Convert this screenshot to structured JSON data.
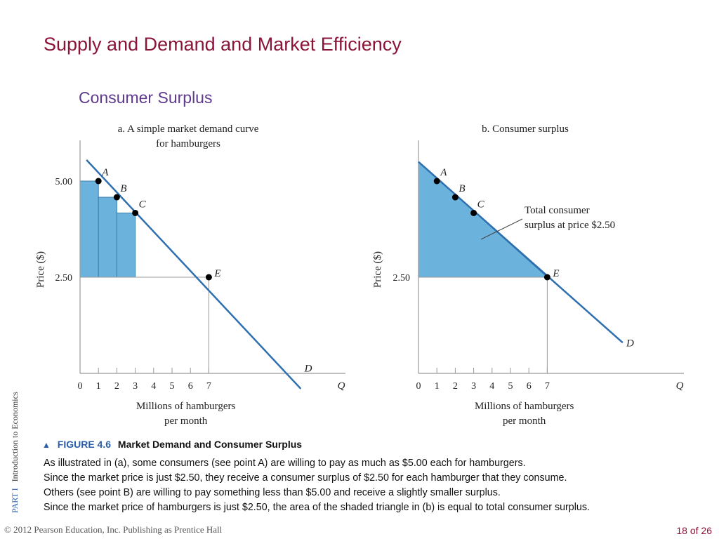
{
  "slide": {
    "title": "Supply and Demand and Market Efficiency",
    "subtitle": "Consumer Surplus",
    "sidebar_part": "PART  I",
    "sidebar_text": "Introduction  to  Economics",
    "footer": "© 2012 Pearson Education, Inc. Publishing as Prentice Hall",
    "page": "18 of 26"
  },
  "caption": {
    "figure_label": "FIGURE 4.6",
    "figure_title": "Market Demand and Consumer Surplus",
    "lines": [
      "As illustrated in (a), some consumers (see point A) are willing to pay as much as $5.00 each for hamburgers.",
      "Since the market price is just $2.50, they receive a consumer surplus of $2.50 for each hamburger that they consume.",
      "Others (see point B) are willing to pay something less than $5.00 and receive a slightly smaller surplus.",
      "Since the market price of hamburgers is just $2.50, the area of the shaded triangle in (b) is equal to total consumer surplus."
    ]
  },
  "colors": {
    "title": "#8b1538",
    "subtitle": "#5e3a8c",
    "demand_line": "#2e6fb0",
    "surplus_fill": "#6bb3dc",
    "axis": "#999999",
    "point": "#000000"
  },
  "chart_data": [
    {
      "type": "line",
      "panel": "a",
      "title": [
        "a. A simple market demand curve",
        "for hamburgers"
      ],
      "xlabel": [
        "Millions of hamburgers",
        "per month"
      ],
      "ylabel": "Price ($)",
      "x_axis_symbol": "Q",
      "x_ticks": [
        0,
        1,
        2,
        3,
        4,
        5,
        6,
        7
      ],
      "y_ticks": [
        {
          "value": 2.5,
          "label": "2.50"
        },
        {
          "value": 5.0,
          "label": "5.00"
        }
      ],
      "xlim": [
        0,
        14.3
      ],
      "ylim": [
        0,
        6.1
      ],
      "series": [
        {
          "x": [
            0.35,
            12.0
          ],
          "y": [
            5.55,
            -0.4
          ],
          "label_at": {
            "x": 12.2,
            "y": 0.05,
            "text": "D"
          }
        }
      ],
      "points": [
        {
          "name": "A",
          "x": 1,
          "y": 5.0
        },
        {
          "name": "B",
          "x": 2,
          "y": 4.58
        },
        {
          "name": "C",
          "x": 3,
          "y": 4.17
        },
        {
          "name": "E",
          "x": 7,
          "y": 2.5
        }
      ],
      "price_line": 2.5,
      "surplus_bars": [
        {
          "x0": 0,
          "x1": 1,
          "top": 5.0
        },
        {
          "x0": 1,
          "x1": 2,
          "top": 4.58
        },
        {
          "x0": 2,
          "x1": 3,
          "top": 4.17
        }
      ],
      "grid": false
    },
    {
      "type": "area",
      "panel": "b",
      "title": [
        "b. Consumer surplus"
      ],
      "xlabel": [
        "Millions of hamburgers",
        "per month"
      ],
      "ylabel": "Price ($)",
      "x_axis_symbol": "Q",
      "x_ticks": [
        0,
        1,
        2,
        3,
        4,
        5,
        6,
        7
      ],
      "y_ticks": [
        {
          "value": 2.5,
          "label": "2.50"
        }
      ],
      "xlim": [
        0,
        14.3
      ],
      "ylim": [
        0,
        6.1
      ],
      "series": [
        {
          "x": [
            0,
            11.1
          ],
          "y": [
            5.5,
            0.8
          ],
          "label_at": {
            "x": 11.3,
            "y": 0.7,
            "text": "D"
          }
        }
      ],
      "points": [
        {
          "name": "A",
          "x": 1,
          "y": 5.0
        },
        {
          "name": "B",
          "x": 2,
          "y": 4.58
        },
        {
          "name": "C",
          "x": 3,
          "y": 4.17
        },
        {
          "name": "E",
          "x": 7,
          "y": 2.5
        }
      ],
      "price_line": 2.5,
      "surplus_triangle": [
        [
          0,
          5.5
        ],
        [
          7,
          2.5
        ],
        [
          0,
          2.5
        ]
      ],
      "annotation": [
        "Total consumer",
        "surplus at price $2.50"
      ],
      "grid": false
    }
  ]
}
